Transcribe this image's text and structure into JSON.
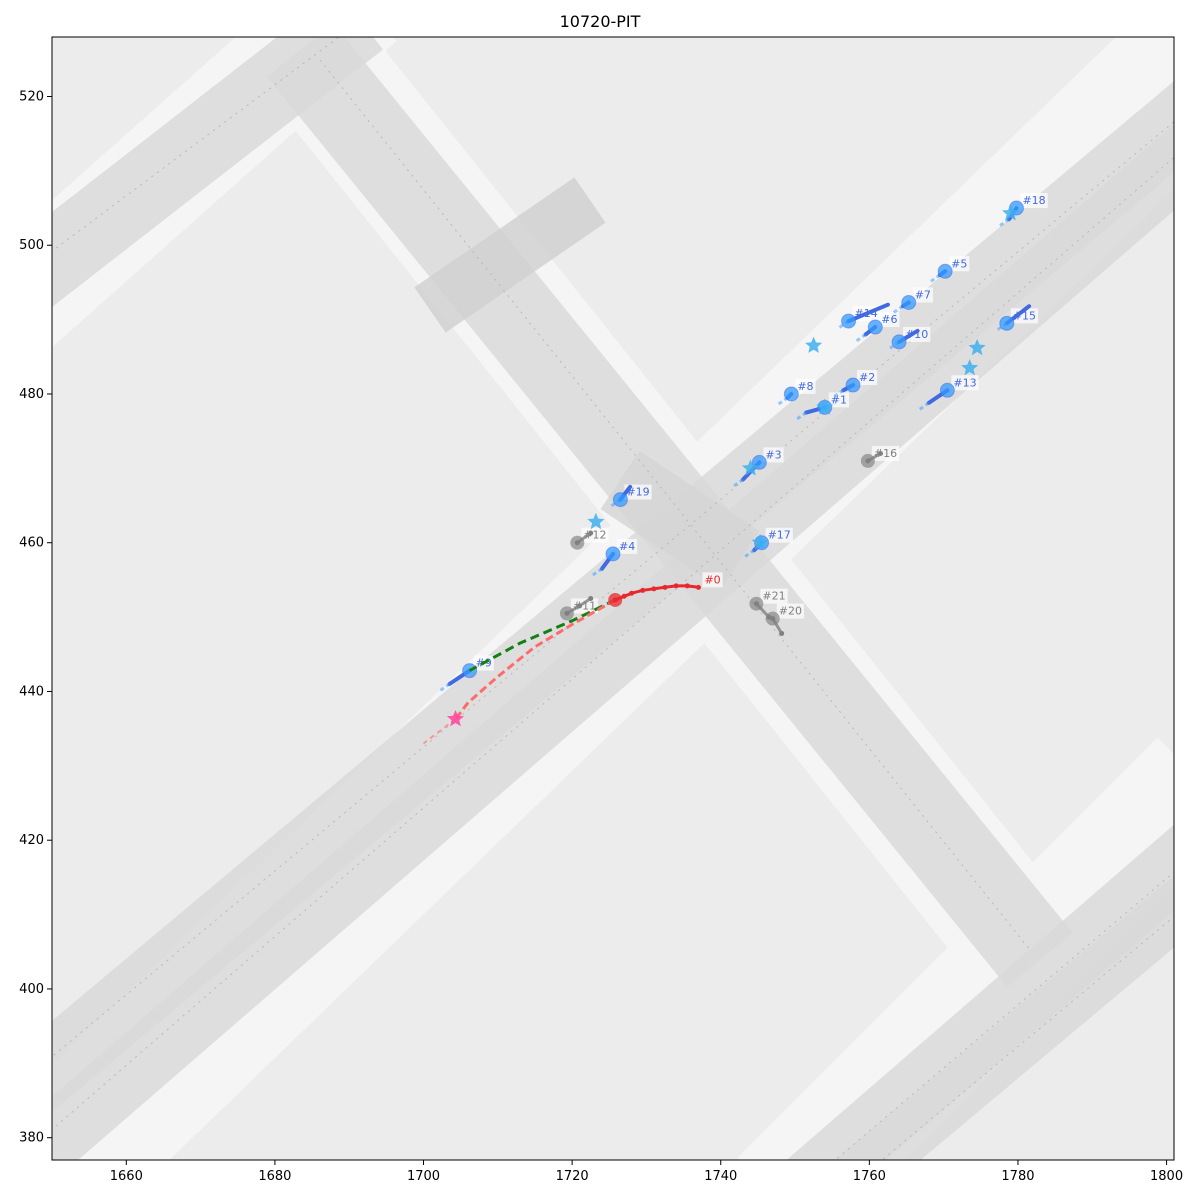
{
  "chart_data": {
    "type": "scatter",
    "title": "10720-PIT",
    "xlabel": "",
    "ylabel": "",
    "xlim": [
      1650,
      1801
    ],
    "ylim": [
      377,
      528
    ],
    "xticks": [
      1660,
      1680,
      1700,
      1720,
      1740,
      1760,
      1780,
      1800
    ],
    "yticks": [
      380,
      400,
      420,
      440,
      460,
      480,
      500,
      520
    ],
    "grid": false,
    "colors": {
      "focal": "#e8282c",
      "focal_future": "#ff6b6b",
      "prediction": "#128012",
      "vehicle": "#4169e1",
      "vehicle_light": "#3399ff",
      "star": "#40b0f0",
      "static": "#808080",
      "pink_star": "#ff4aa0",
      "road": "#d8d8d8",
      "background": "#ececec"
    },
    "focal_agent": {
      "label": "#0",
      "history": [
        [
          1737.0,
          454.0
        ],
        [
          1735.5,
          454.2
        ],
        [
          1734.0,
          454.2
        ],
        [
          1732.5,
          454.0
        ],
        [
          1731.0,
          453.8
        ],
        [
          1729.5,
          453.6
        ],
        [
          1728.0,
          453.2
        ],
        [
          1727.0,
          452.8
        ],
        [
          1725.8,
          452.3
        ]
      ],
      "current": [
        1725.8,
        452.3
      ],
      "future": [
        [
          1725.8,
          452.3
        ],
        [
          1720.0,
          449.0
        ],
        [
          1715.0,
          446.0
        ],
        [
          1710.0,
          442.0
        ],
        [
          1706.0,
          438.5
        ],
        [
          1704.3,
          436.3
        ]
      ],
      "future_extension": [
        [
          1704.3,
          436.3
        ],
        [
          1700.0,
          433.0
        ]
      ],
      "goal": [
        1704.3,
        436.3
      ]
    },
    "prediction": [
      [
        1725.8,
        452.3
      ],
      [
        1720.0,
        449.5
      ],
      [
        1713.0,
        446.5
      ],
      [
        1706.2,
        442.8
      ]
    ],
    "vehicles": [
      {
        "label": "#1",
        "pos": [
          1754.0,
          478.2
        ],
        "track": [
          [
            1751.5,
            477.5
          ],
          [
            1754.0,
            478.2
          ]
        ],
        "star": [
          1754.0,
          478.2
        ]
      },
      {
        "label": "#2",
        "pos": [
          1757.8,
          481.2
        ],
        "track": [
          [
            1756.5,
            480.5
          ],
          [
            1757.8,
            481.2
          ]
        ]
      },
      {
        "label": "#3",
        "pos": [
          1745.2,
          470.8
        ],
        "track": [
          [
            1743.0,
            468.5
          ],
          [
            1745.2,
            470.8
          ]
        ],
        "star": [
          1744.0,
          470.0
        ]
      },
      {
        "label": "#4",
        "pos": [
          1725.5,
          458.5
        ],
        "track": [
          [
            1724.0,
            456.5
          ],
          [
            1725.5,
            458.5
          ]
        ]
      },
      {
        "label": "#5",
        "pos": [
          1770.2,
          496.5
        ],
        "track": [
          [
            1769.5,
            496.0
          ],
          [
            1770.2,
            496.5
          ]
        ]
      },
      {
        "label": "#6",
        "pos": [
          1760.8,
          489.0
        ],
        "track": [
          [
            1759.5,
            488.0
          ],
          [
            1760.8,
            489.0
          ]
        ]
      },
      {
        "label": "#7",
        "pos": [
          1765.3,
          492.3
        ],
        "track": [
          [
            1764.5,
            491.8
          ],
          [
            1765.3,
            492.3
          ]
        ]
      },
      {
        "label": "#8",
        "pos": [
          1749.5,
          480.0
        ],
        "track": [
          [
            1749.0,
            479.5
          ],
          [
            1749.5,
            480.0
          ]
        ]
      },
      {
        "label": "#9",
        "pos": [
          1706.2,
          442.8
        ],
        "track": [
          [
            1703.5,
            441.0
          ],
          [
            1706.2,
            442.8
          ]
        ]
      },
      {
        "label": "#10",
        "pos": [
          1764.0,
          487.0
        ],
        "track": [
          [
            1764.0,
            487.0
          ],
          [
            1766.5,
            488.5
          ]
        ]
      },
      {
        "label": "#13",
        "pos": [
          1770.5,
          480.5
        ],
        "track": [
          [
            1768.0,
            478.8
          ],
          [
            1770.5,
            480.5
          ]
        ],
        "star": [
          1773.5,
          483.5
        ]
      },
      {
        "label": "#14",
        "pos": [
          1757.2,
          489.8
        ],
        "track": [
          [
            1757.2,
            489.8
          ],
          [
            1762.5,
            492.0
          ]
        ],
        "star": [
          1752.5,
          486.5
        ]
      },
      {
        "label": "#15",
        "pos": [
          1778.5,
          489.5
        ],
        "track": [
          [
            1778.5,
            489.5
          ],
          [
            1781.5,
            491.8
          ]
        ],
        "star": [
          1774.5,
          486.2
        ]
      },
      {
        "label": "#17",
        "pos": [
          1745.5,
          460.0
        ],
        "track": [
          [
            1744.5,
            459.0
          ],
          [
            1745.5,
            460.0
          ]
        ],
        "star": [
          1745.3,
          460.0
        ]
      },
      {
        "label": "#18",
        "pos": [
          1779.8,
          505.0
        ],
        "track": [
          [
            1778.8,
            503.5
          ],
          [
            1779.8,
            505.0
          ]
        ],
        "star": [
          1779.0,
          504.3
        ]
      },
      {
        "label": "#19",
        "pos": [
          1726.5,
          465.8
        ],
        "track": [
          [
            1726.5,
            465.8
          ],
          [
            1727.8,
            467.5
          ]
        ],
        "star": [
          1723.2,
          462.8
        ]
      }
    ],
    "static_agents": [
      {
        "label": "#11",
        "pos": [
          1719.3,
          450.5
        ],
        "track": [
          [
            1719.3,
            450.5
          ],
          [
            1721.0,
            451.5
          ],
          [
            1722.5,
            452.5
          ]
        ]
      },
      {
        "label": "#12",
        "pos": [
          1720.7,
          460.0
        ],
        "track": [
          [
            1720.7,
            460.0
          ],
          [
            1722.5,
            461.3
          ]
        ]
      },
      {
        "label": "#16",
        "pos": [
          1759.8,
          471.0
        ],
        "track": [
          [
            1759.8,
            471.0
          ],
          [
            1761.5,
            472.0
          ]
        ]
      },
      {
        "label": "#20",
        "pos": [
          1747.0,
          449.8
        ],
        "track": [
          [
            1747.0,
            449.8
          ],
          [
            1748.2,
            447.8
          ]
        ]
      },
      {
        "label": "#21",
        "pos": [
          1744.8,
          451.8
        ],
        "track": [
          [
            1744.8,
            451.8
          ],
          [
            1746.5,
            450.0
          ]
        ]
      }
    ]
  }
}
